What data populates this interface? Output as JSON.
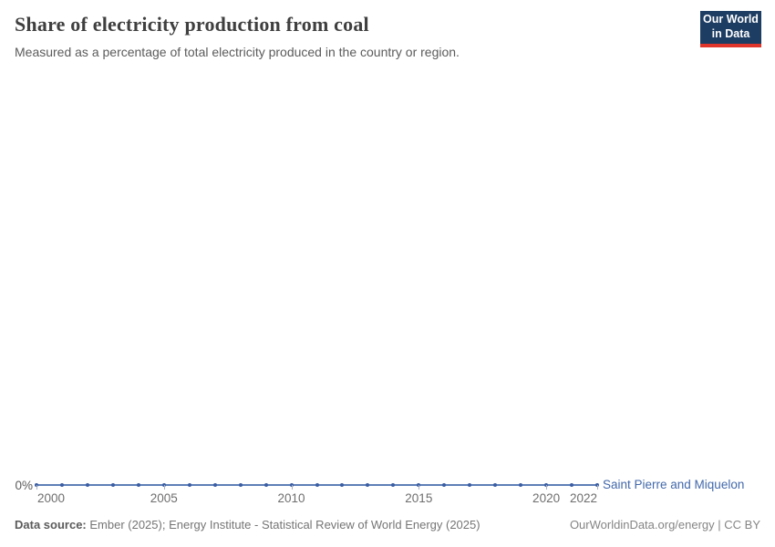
{
  "header": {
    "title": "Share of electricity production from coal",
    "subtitle": "Measured as a percentage of total electricity produced in the country or region."
  },
  "logo": {
    "line1": "Our World",
    "line2": "in Data",
    "bg_color": "#1d3d63",
    "stripe_color": "#e0352b"
  },
  "chart": {
    "y_axis_label": "0%",
    "entity_label": "Saint Pierre and Miquelon",
    "line_color": "#4268aa",
    "dot_color": "#3a5da3",
    "x_tick_years": [
      2000,
      2005,
      2010,
      2015,
      2020,
      2022
    ]
  },
  "chart_data": {
    "type": "line",
    "title": "Share of electricity production from coal",
    "subtitle": "Measured as a percentage of total electricity produced in the country or region.",
    "x": [
      2000,
      2001,
      2002,
      2003,
      2004,
      2005,
      2006,
      2007,
      2008,
      2009,
      2010,
      2011,
      2012,
      2013,
      2014,
      2015,
      2016,
      2017,
      2018,
      2019,
      2020,
      2021,
      2022
    ],
    "series": [
      {
        "name": "Saint Pierre and Miquelon",
        "values": [
          0,
          0,
          0,
          0,
          0,
          0,
          0,
          0,
          0,
          0,
          0,
          0,
          0,
          0,
          0,
          0,
          0,
          0,
          0,
          0,
          0,
          0,
          0
        ]
      }
    ],
    "xlabel": "",
    "ylabel": "",
    "yticks": [
      "0%"
    ],
    "xlim": [
      2000,
      2022
    ],
    "unit": "%",
    "grid": false,
    "legend_position": "right-of-line-end"
  },
  "footer": {
    "data_source_label": "Data source:",
    "data_source_text": " Ember (2025); Energy Institute - Statistical Review of World Energy (2025)",
    "right_text": "OurWorldinData.org/energy | CC BY"
  }
}
